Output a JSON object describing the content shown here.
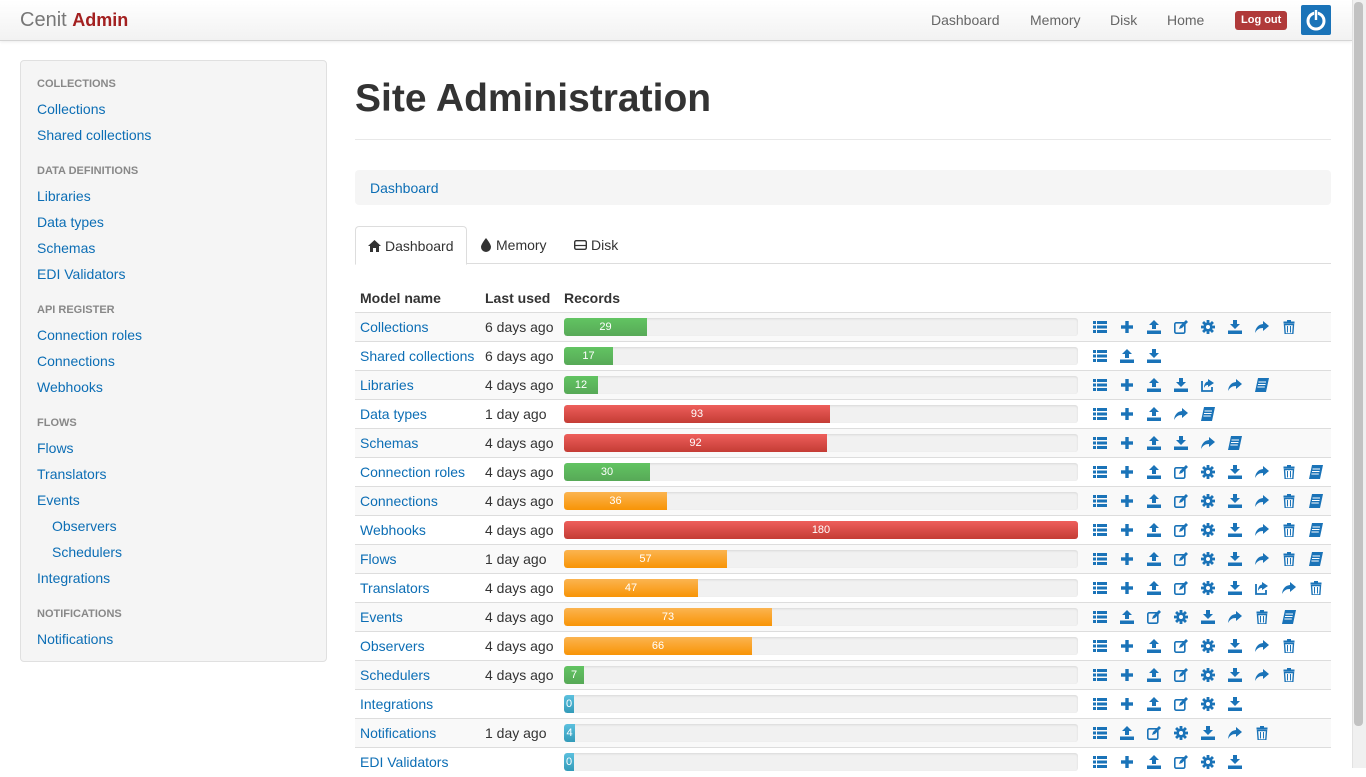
{
  "navbar": {
    "brand_prefix": "Cenit",
    "brand_accent": "Admin",
    "links": [
      "Dashboard",
      "Memory",
      "Disk",
      "Home"
    ],
    "logout_label": "Log out"
  },
  "sidebar": {
    "sections": [
      {
        "header": "COLLECTIONS",
        "items": [
          "Collections",
          "Shared collections"
        ]
      },
      {
        "header": "DATA DEFINITIONS",
        "items": [
          "Libraries",
          "Data types",
          "Schemas",
          "EDI Validators"
        ]
      },
      {
        "header": "API REGISTER",
        "items": [
          "Connection roles",
          "Connections",
          "Webhooks"
        ]
      },
      {
        "header": "FLOWS",
        "items": [
          "Flows",
          "Translators",
          "Events",
          "Observers",
          "Schedulers",
          "Integrations"
        ]
      },
      {
        "header": "NOTIFICATIONS",
        "items": [
          "Notifications"
        ]
      }
    ]
  },
  "main": {
    "title": "Site Administration",
    "breadcrumb": "Dashboard",
    "tabs": [
      {
        "label": "Dashboard",
        "icon": "home-icon"
      },
      {
        "label": "Memory",
        "icon": "tint-icon"
      },
      {
        "label": "Disk",
        "icon": "hdd-icon"
      }
    ],
    "table": {
      "headers": [
        "Model name",
        "Last used",
        "Records"
      ],
      "max_records": 180,
      "rows": [
        {
          "name": "Collections",
          "last_used": "6 days ago",
          "records": 29,
          "color": "green",
          "actions": [
            "list",
            "add",
            "upload",
            "edit",
            "settings",
            "download",
            "share",
            "delete"
          ]
        },
        {
          "name": "Shared collections",
          "last_used": "6 days ago",
          "records": 17,
          "color": "green",
          "actions": [
            "list",
            "upload",
            "download"
          ]
        },
        {
          "name": "Libraries",
          "last_used": "4 days ago",
          "records": 12,
          "color": "green",
          "actions": [
            "list",
            "add",
            "upload",
            "download",
            "export",
            "share",
            "book"
          ]
        },
        {
          "name": "Data types",
          "last_used": "1 day ago",
          "records": 93,
          "color": "red",
          "actions": [
            "list",
            "add",
            "upload",
            "share",
            "book"
          ]
        },
        {
          "name": "Schemas",
          "last_used": "4 days ago",
          "records": 92,
          "color": "red",
          "actions": [
            "list",
            "add",
            "upload",
            "download",
            "share",
            "book"
          ]
        },
        {
          "name": "Connection roles",
          "last_used": "4 days ago",
          "records": 30,
          "color": "green",
          "actions": [
            "list",
            "add",
            "upload",
            "edit",
            "settings",
            "download",
            "share",
            "delete",
            "book"
          ]
        },
        {
          "name": "Connections",
          "last_used": "4 days ago",
          "records": 36,
          "color": "orange",
          "actions": [
            "list",
            "add",
            "upload",
            "edit",
            "settings",
            "download",
            "share",
            "delete",
            "book"
          ]
        },
        {
          "name": "Webhooks",
          "last_used": "4 days ago",
          "records": 180,
          "color": "red",
          "actions": [
            "list",
            "add",
            "upload",
            "edit",
            "settings",
            "download",
            "share",
            "delete",
            "book"
          ]
        },
        {
          "name": "Flows",
          "last_used": "1 day ago",
          "records": 57,
          "color": "orange",
          "actions": [
            "list",
            "add",
            "upload",
            "edit",
            "settings",
            "download",
            "share",
            "delete",
            "book"
          ]
        },
        {
          "name": "Translators",
          "last_used": "4 days ago",
          "records": 47,
          "color": "orange",
          "actions": [
            "list",
            "add",
            "upload",
            "edit",
            "settings",
            "download",
            "export",
            "share",
            "delete"
          ]
        },
        {
          "name": "Events",
          "last_used": "4 days ago",
          "records": 73,
          "color": "orange",
          "actions": [
            "list",
            "upload",
            "edit",
            "settings",
            "download",
            "share",
            "delete",
            "book"
          ]
        },
        {
          "name": "Observers",
          "last_used": "4 days ago",
          "records": 66,
          "color": "orange",
          "actions": [
            "list",
            "add",
            "upload",
            "edit",
            "settings",
            "download",
            "share",
            "delete"
          ]
        },
        {
          "name": "Schedulers",
          "last_used": "4 days ago",
          "records": 7,
          "color": "green",
          "actions": [
            "list",
            "add",
            "upload",
            "edit",
            "settings",
            "download",
            "share",
            "delete"
          ]
        },
        {
          "name": "Integrations",
          "last_used": "",
          "records": 0,
          "color": "blue",
          "actions": [
            "list",
            "add",
            "upload",
            "edit",
            "settings",
            "download"
          ]
        },
        {
          "name": "Notifications",
          "last_used": "1 day ago",
          "records": 4,
          "color": "blue",
          "actions": [
            "list",
            "upload",
            "edit",
            "settings",
            "download",
            "share",
            "delete"
          ]
        },
        {
          "name": "EDI Validators",
          "last_used": "",
          "records": 0,
          "color": "blue",
          "actions": [
            "list",
            "add",
            "upload",
            "edit",
            "settings",
            "download"
          ]
        }
      ]
    }
  },
  "colors": {
    "link": "#0c6eb5",
    "brand_accent": "#a32020",
    "logout": "#b03a3a",
    "power_button": "#1a73b8"
  }
}
